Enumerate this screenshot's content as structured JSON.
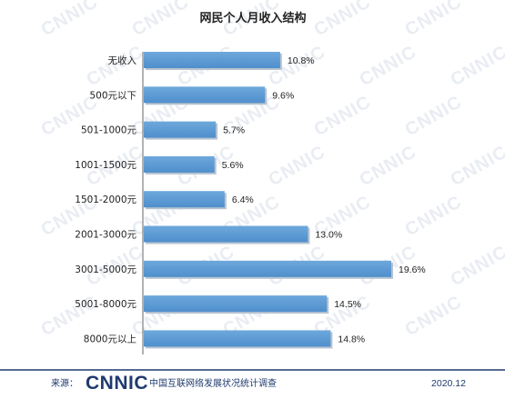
{
  "chart_data": {
    "type": "bar",
    "orientation": "horizontal",
    "title": "网民个人月收入结构",
    "categories": [
      "无收入",
      "500元以下",
      "501-1000元",
      "1001-1500元",
      "1501-2000元",
      "2001-3000元",
      "3001-5000元",
      "5001-8000元",
      "8000元以上"
    ],
    "values": [
      10.8,
      9.6,
      5.7,
      5.6,
      6.4,
      13.0,
      19.6,
      14.5,
      14.8
    ],
    "value_labels": [
      "10.8%",
      "9.6%",
      "5.7%",
      "5.6%",
      "6.4%",
      "13.0%",
      "19.6%",
      "14.5%",
      "14.8%"
    ],
    "unit": "%",
    "xlim": [
      0,
      19.6
    ],
    "grid": false,
    "bar_color": "#5b9bd5"
  },
  "watermark": "CNNIC",
  "footer": {
    "source_label": "来源：",
    "logo": "CNNIC",
    "org": "中国互联网络发展状况统计调查",
    "date": "2020.12",
    "line_color": "#1f3a6e"
  }
}
